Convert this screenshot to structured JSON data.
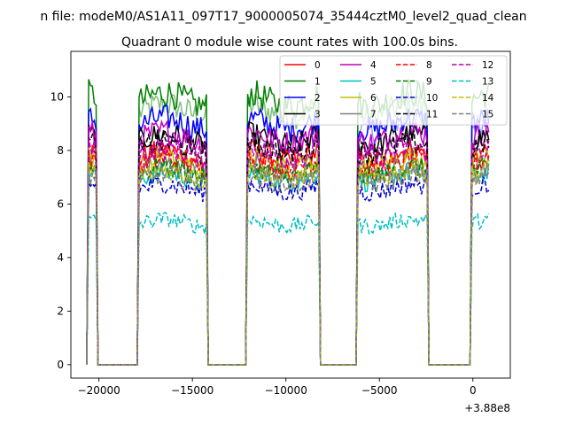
{
  "chart_data": {
    "type": "line",
    "suptitle": "n file: modeM0/AS1A11_097T17_9000005074_35444cztM0_level2_quad_clean",
    "title": "Quadrant 0 module wise count rates with 100.0s bins.",
    "xlabel": "",
    "ylabel": "",
    "offset_text": "+3.88e8",
    "xlim": [
      -21500,
      2000
    ],
    "ylim": [
      -0.5,
      11.7
    ],
    "x_ticks": [
      {
        "value": -20000,
        "label": "−20000"
      },
      {
        "value": -15000,
        "label": "−15000"
      },
      {
        "value": -10000,
        "label": "−10000"
      },
      {
        "value": -5000,
        "label": "−5000"
      },
      {
        "value": 0,
        "label": "0"
      }
    ],
    "y_ticks": [
      {
        "value": 0,
        "label": "0"
      },
      {
        "value": 2,
        "label": "2"
      },
      {
        "value": 4,
        "label": "4"
      },
      {
        "value": 6,
        "label": "6"
      },
      {
        "value": 8,
        "label": "8"
      },
      {
        "value": 10,
        "label": "10"
      }
    ],
    "grid": false,
    "legend_position": "top-right",
    "on_intervals": [
      [
        -20600,
        -20100
      ],
      [
        -17900,
        -14200
      ],
      [
        -12100,
        -8200
      ],
      [
        -6200,
        -2400
      ],
      [
        -100,
        900
      ]
    ],
    "series": [
      {
        "name": "0",
        "color": "#ff0000",
        "dash": "solid",
        "level": 7.8
      },
      {
        "name": "1",
        "color": "#008000",
        "dash": "solid",
        "level": 9.9
      },
      {
        "name": "2",
        "color": "#0000ff",
        "dash": "solid",
        "level": 9.0
      },
      {
        "name": "3",
        "color": "#000000",
        "dash": "solid",
        "level": 8.4
      },
      {
        "name": "4",
        "color": "#bf00bf",
        "dash": "solid",
        "level": 8.5
      },
      {
        "name": "5",
        "color": "#00bfbf",
        "dash": "solid",
        "level": 7.0
      },
      {
        "name": "6",
        "color": "#bfbf00",
        "dash": "solid",
        "level": 7.6
      },
      {
        "name": "7",
        "color": "#808080",
        "dash": "solid",
        "level": 7.3
      },
      {
        "name": "8",
        "color": "#ff0000",
        "dash": "dashed",
        "level": 7.5
      },
      {
        "name": "9",
        "color": "#008000",
        "dash": "dashed",
        "level": 7.2
      },
      {
        "name": "10",
        "color": "#0000cd",
        "dash": "dashed",
        "level": 6.6
      },
      {
        "name": "11",
        "color": "#000000",
        "dash": "dashed",
        "level": 8.1
      },
      {
        "name": "12",
        "color": "#bf00bf",
        "dash": "dashed",
        "level": 7.9
      },
      {
        "name": "13",
        "color": "#00bfbf",
        "dash": "dashed",
        "level": 5.3
      },
      {
        "name": "14",
        "color": "#bfbf00",
        "dash": "dashed",
        "level": 7.1
      },
      {
        "name": "15",
        "color": "#808080",
        "dash": "dashed",
        "level": 6.9
      }
    ],
    "extra_series": [
      {
        "color": "#7fbf7f",
        "dash": "solid",
        "level": 9.5,
        "intervals": [
          1,
          2,
          3
        ]
      },
      {
        "color": "#9f9fff",
        "dash": "solid",
        "level": 8.9,
        "intervals": [
          3,
          4
        ]
      }
    ]
  }
}
